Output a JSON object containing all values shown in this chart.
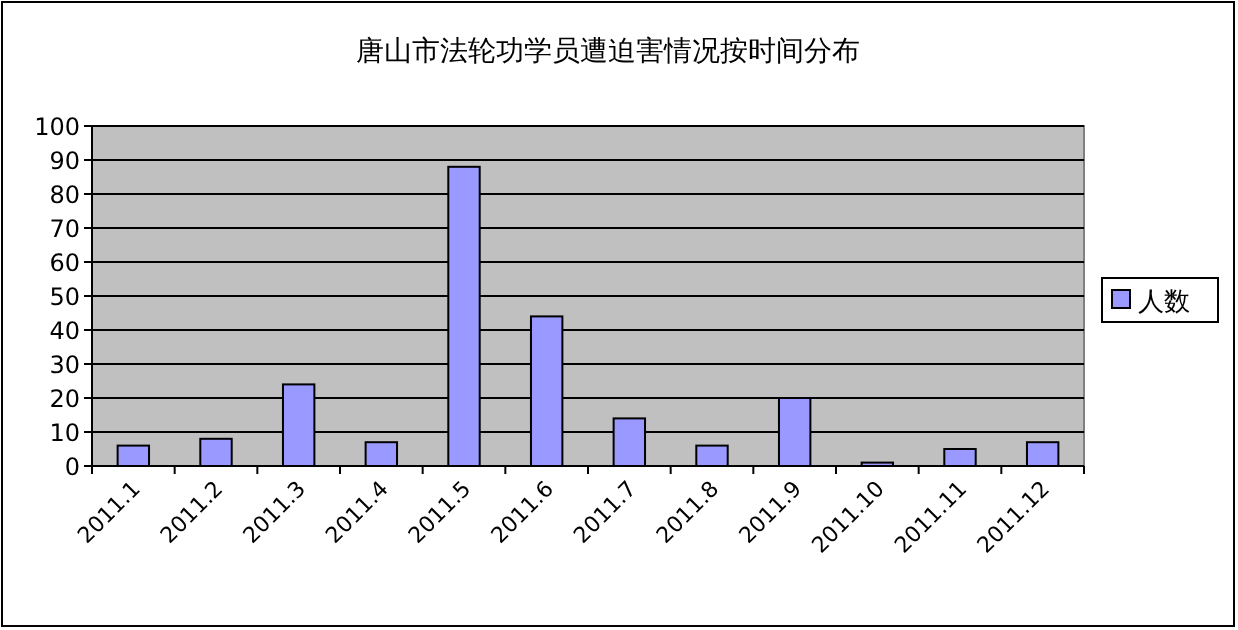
{
  "chart_data": {
    "type": "bar",
    "title": "唐山市法轮功学员遭迫害情况按时间分布",
    "categories": [
      "2011.1",
      "2011.2",
      "2011.3",
      "2011.4",
      "2011.5",
      "2011.6",
      "2011.7",
      "2011.8",
      "2011.9",
      "2011.10",
      "2011.11",
      "2011.12"
    ],
    "series": [
      {
        "name": "人数",
        "color": "#9999ff",
        "values": [
          6,
          8,
          24,
          7,
          88,
          44,
          14,
          6,
          20,
          1,
          5,
          7
        ]
      }
    ],
    "ylim": [
      0,
      100
    ],
    "yticks": [
      0,
      10,
      20,
      30,
      40,
      50,
      60,
      70,
      80,
      90,
      100
    ],
    "grid": "y",
    "legend": "right"
  }
}
